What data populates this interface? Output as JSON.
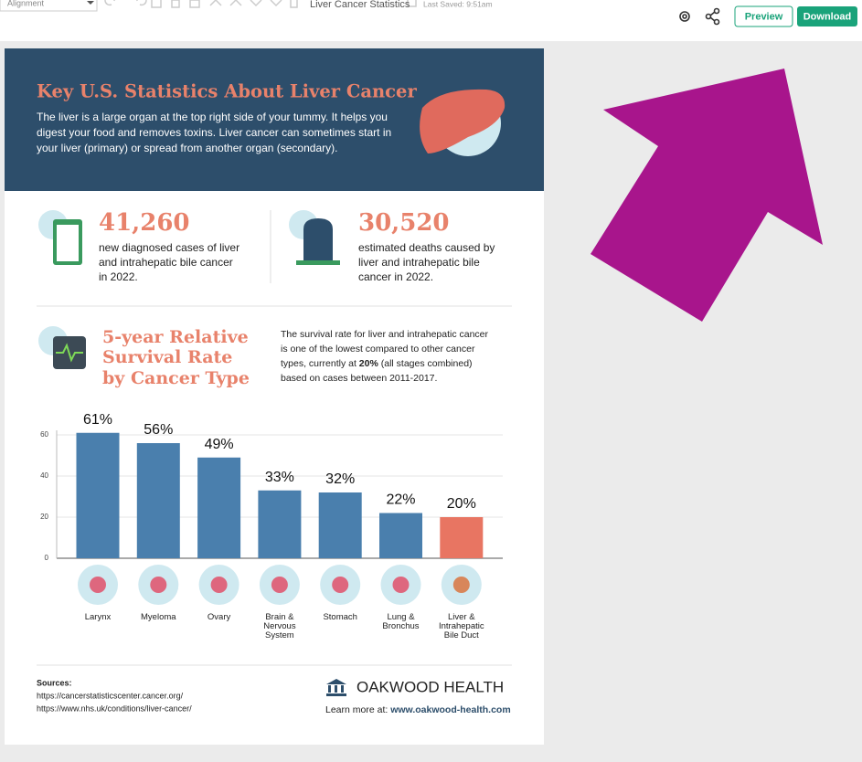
{
  "toolbar": {
    "alignment": "Alignment",
    "doc_title": "Liver Cancer Statistics",
    "last_saved": "Last Saved: 9:51am",
    "preview": "Preview",
    "download": "Download"
  },
  "header": {
    "title": "Key U.S. Statistics About Liver Cancer",
    "lines": [
      "The liver is a large organ at the top right side of your tummy. It helps you",
      "digest your food and removes toxins. Liver cancer can sometimes start in",
      "your liver (primary) or spread from another organ (secondary)."
    ]
  },
  "stats": [
    {
      "number": "41,260",
      "lines": [
        "new diagnosed cases of liver",
        "and intrahepatic bile cancer",
        "in 2022."
      ]
    },
    {
      "number": "30,520",
      "lines": [
        "estimated deaths caused by",
        "liver and intrahepatic bile",
        "cancer in 2022."
      ]
    }
  ],
  "survival": {
    "title": [
      "5-year Relative",
      "Survival Rate",
      "by Cancer Type"
    ],
    "lines": [
      "The survival rate for liver and intrahepatic cancer",
      "is one of the lowest compared to other cancer"
    ],
    "line3": {
      "before": "types, currently at ",
      "bold": "20%",
      "after": " (all stages combined)"
    },
    "line4": "based on cases between 2011-2017."
  },
  "chart_data": {
    "type": "bar",
    "categories": [
      "Larynx",
      "Myeloma",
      "Ovary",
      "Brain & Nervous System",
      "Stomach",
      "Lung & Bronchus",
      "Liver & Intrahepatic Bile Duct"
    ],
    "values": [
      61,
      56,
      49,
      33,
      32,
      22,
      20
    ],
    "value_labels": [
      "61%",
      "56%",
      "49%",
      "33%",
      "32%",
      "22%",
      "20%"
    ],
    "colors": [
      "#4a7fad",
      "#4a7fad",
      "#4a7fad",
      "#4a7fad",
      "#4a7fad",
      "#4a7fad",
      "#e87562"
    ],
    "ylim": [
      0,
      60
    ],
    "yticks": [
      0,
      20,
      40,
      60
    ],
    "grid": true
  },
  "footer": {
    "sources_label": "Sources:",
    "sources": [
      "https://cancerstatisticscenter.cancer.org/",
      "https://www.nhs.uk/conditions/liver-cancer/"
    ],
    "brand": "OAKWOOD HEALTH",
    "learn": "Learn more at: ",
    "url": "www.oakwood-health.com"
  }
}
